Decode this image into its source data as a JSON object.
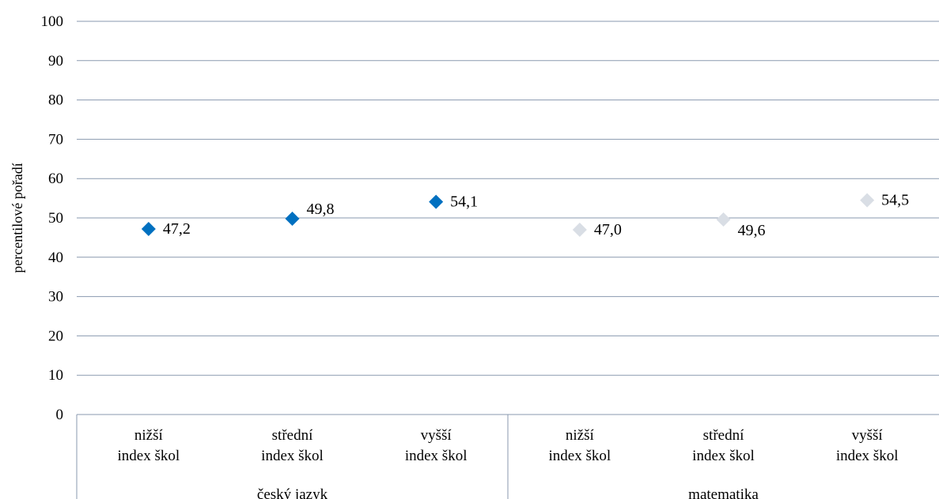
{
  "chart_data": {
    "type": "scatter",
    "title": "",
    "xlabel": "",
    "ylabel": "percentilové pořadí",
    "ylim": [
      0,
      100
    ],
    "yticks": [
      "0",
      "10",
      "20",
      "30",
      "40",
      "50",
      "60",
      "70",
      "80",
      "90",
      "100"
    ],
    "grid": true,
    "legend": "none",
    "groups": [
      {
        "name": "český jazyk",
        "color": "#0070C0",
        "categories": [
          {
            "line1": "nižší",
            "line2": "index škol",
            "value": 47.2,
            "label": "47,2"
          },
          {
            "line1": "střední",
            "line2": "index škol",
            "value": 49.8,
            "label": "49,8"
          },
          {
            "line1": "vyšší",
            "line2": "index škol",
            "value": 54.1,
            "label": "54,1"
          }
        ]
      },
      {
        "name": "matematika",
        "color": "#D9DEE5",
        "categories": [
          {
            "line1": "nižší",
            "line2": "index škol",
            "value": 47.0,
            "label": "47,0"
          },
          {
            "line1": "střední",
            "line2": "index škol",
            "value": 49.6,
            "label": "49,6"
          },
          {
            "line1": "vyšší",
            "line2": "index škol",
            "value": 54.5,
            "label": "54,5"
          }
        ]
      }
    ]
  }
}
